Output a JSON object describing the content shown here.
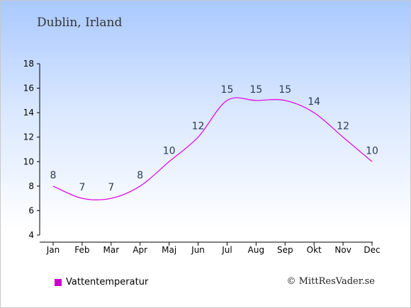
{
  "header": {
    "title": "Dublin, Irland"
  },
  "chart_data": {
    "type": "line",
    "categories": [
      "Jan",
      "Feb",
      "Mar",
      "Apr",
      "Maj",
      "Jun",
      "Jul",
      "Aug",
      "Sep",
      "Okt",
      "Nov",
      "Dec"
    ],
    "series": [
      {
        "name": "Vattentemperatur",
        "values": [
          8,
          7,
          7,
          8,
          10,
          12,
          15,
          15,
          15,
          14,
          12,
          10
        ],
        "color": "#e010e0"
      }
    ],
    "ylim": [
      4,
      18
    ],
    "yticks": [
      4,
      6,
      8,
      10,
      12,
      14,
      16,
      18
    ],
    "grid": false,
    "legend_position": "bottom-left"
  },
  "legend": {
    "label": "Vattentemperatur",
    "color": "#cc00cc"
  },
  "credit": "© MittResVader.se"
}
